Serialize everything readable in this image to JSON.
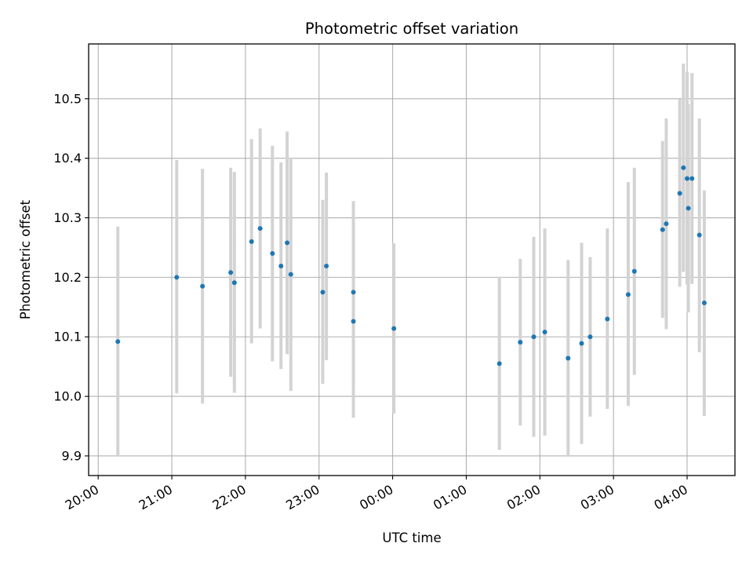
{
  "chart_data": {
    "type": "scatter",
    "title": "Photometric offset variation",
    "xlabel": "UTC time",
    "ylabel": "Photometric offset",
    "grid": true,
    "x_tick_labels": [
      "20:00",
      "21:00",
      "22:00",
      "23:00",
      "00:00",
      "01:00",
      "02:00",
      "03:00",
      "04:00"
    ],
    "x_ticks_hours": [
      0,
      1,
      2,
      3,
      4,
      5,
      6,
      7,
      8
    ],
    "y_ticks": [
      9.9,
      10.0,
      10.1,
      10.2,
      10.3,
      10.4,
      10.5
    ],
    "y_tick_labels": [
      "9.9",
      "10.0",
      "10.1",
      "10.2",
      "10.3",
      "10.4",
      "10.5"
    ],
    "xlim_hours_after_2000": [
      -0.13,
      8.65
    ],
    "ylim": [
      9.867,
      10.592
    ],
    "point_color": "#1f77b4",
    "errorbar_color": "#d3d3d3",
    "points": [
      {
        "time": "20:16",
        "y": 10.092,
        "y_low": 9.9,
        "y_high": 10.285
      },
      {
        "time": "21:04",
        "y": 10.2,
        "y_low": 10.005,
        "y_high": 10.397
      },
      {
        "time": "21:25",
        "y": 10.185,
        "y_low": 9.988,
        "y_high": 10.382
      },
      {
        "time": "21:48",
        "y": 10.208,
        "y_low": 10.033,
        "y_high": 10.384
      },
      {
        "time": "21:51",
        "y": 10.191,
        "y_low": 10.006,
        "y_high": 10.377
      },
      {
        "time": "22:05",
        "y": 10.26,
        "y_low": 10.089,
        "y_high": 10.432
      },
      {
        "time": "22:12",
        "y": 10.282,
        "y_low": 10.114,
        "y_high": 10.45
      },
      {
        "time": "22:22",
        "y": 10.24,
        "y_low": 10.059,
        "y_high": 10.421
      },
      {
        "time": "22:29",
        "y": 10.219,
        "y_low": 10.046,
        "y_high": 10.393
      },
      {
        "time": "22:34",
        "y": 10.258,
        "y_low": 10.071,
        "y_high": 10.445
      },
      {
        "time": "22:37",
        "y": 10.205,
        "y_low": 10.009,
        "y_high": 10.401
      },
      {
        "time": "23:03",
        "y": 10.175,
        "y_low": 10.021,
        "y_high": 10.33
      },
      {
        "time": "23:06",
        "y": 10.219,
        "y_low": 10.061,
        "y_high": 10.376
      },
      {
        "time": "23:28",
        "y": 10.175,
        "y_low": 10.023,
        "y_high": 10.328
      },
      {
        "time": "23:28",
        "y": 10.126,
        "y_low": 9.964,
        "y_high": 10.288
      },
      {
        "time": "00:01",
        "y": 10.114,
        "y_low": 9.971,
        "y_high": 10.257
      },
      {
        "time": "01:27",
        "y": 10.055,
        "y_low": 9.91,
        "y_high": 10.201
      },
      {
        "time": "01:44",
        "y": 10.091,
        "y_low": 9.951,
        "y_high": 10.231
      },
      {
        "time": "01:55",
        "y": 10.1,
        "y_low": 9.932,
        "y_high": 10.268
      },
      {
        "time": "02:04",
        "y": 10.108,
        "y_low": 9.934,
        "y_high": 10.282
      },
      {
        "time": "02:23",
        "y": 10.064,
        "y_low": 9.899,
        "y_high": 10.229
      },
      {
        "time": "02:34",
        "y": 10.089,
        "y_low": 9.92,
        "y_high": 10.258
      },
      {
        "time": "02:41",
        "y": 10.1,
        "y_low": 9.966,
        "y_high": 10.234
      },
      {
        "time": "02:55",
        "y": 10.13,
        "y_low": 9.979,
        "y_high": 10.282
      },
      {
        "time": "03:12",
        "y": 10.171,
        "y_low": 9.984,
        "y_high": 10.36
      },
      {
        "time": "03:17",
        "y": 10.21,
        "y_low": 10.036,
        "y_high": 10.384
      },
      {
        "time": "03:40",
        "y": 10.28,
        "y_low": 10.132,
        "y_high": 10.429
      },
      {
        "time": "03:43",
        "y": 10.29,
        "y_low": 10.113,
        "y_high": 10.467
      },
      {
        "time": "03:54",
        "y": 10.341,
        "y_low": 10.184,
        "y_high": 10.499
      },
      {
        "time": "03:57",
        "y": 10.384,
        "y_low": 10.209,
        "y_high": 10.559
      },
      {
        "time": "04:00",
        "y": 10.366,
        "y_low": 10.188,
        "y_high": 10.545
      },
      {
        "time": "04:01",
        "y": 10.316,
        "y_low": 10.141,
        "y_high": 10.491
      },
      {
        "time": "04:04",
        "y": 10.366,
        "y_low": 10.189,
        "y_high": 10.543
      },
      {
        "time": "04:10",
        "y": 10.271,
        "y_low": 10.074,
        "y_high": 10.467
      },
      {
        "time": "04:14",
        "y": 10.157,
        "y_low": 9.967,
        "y_high": 10.346
      }
    ]
  }
}
